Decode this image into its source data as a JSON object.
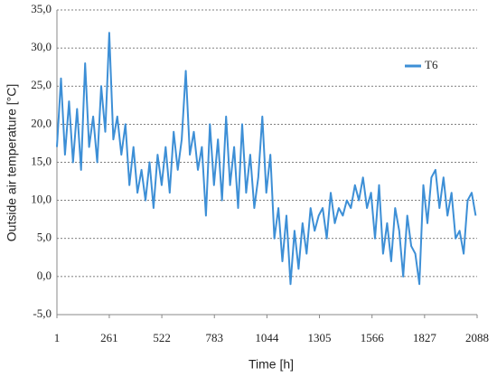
{
  "chart_data": {
    "type": "line",
    "x_label": "Time [h]",
    "y_label": "Outside air temperature [°C]",
    "x": [
      1,
      21,
      41,
      61,
      81,
      101,
      121,
      141,
      161,
      181,
      201,
      221,
      241,
      261,
      281,
      301,
      321,
      341,
      361,
      381,
      401,
      421,
      441,
      461,
      481,
      501,
      521,
      541,
      561,
      581,
      601,
      621,
      641,
      661,
      681,
      701,
      721,
      741,
      761,
      781,
      801,
      821,
      841,
      861,
      881,
      901,
      921,
      941,
      961,
      981,
      1001,
      1021,
      1041,
      1061,
      1081,
      1101,
      1121,
      1141,
      1161,
      1181,
      1201,
      1221,
      1241,
      1261,
      1281,
      1301,
      1321,
      1341,
      1361,
      1381,
      1401,
      1421,
      1441,
      1461,
      1481,
      1501,
      1521,
      1541,
      1561,
      1581,
      1601,
      1621,
      1641,
      1661,
      1681,
      1701,
      1721,
      1741,
      1761,
      1781,
      1801,
      1821,
      1841,
      1861,
      1881,
      1901,
      1921,
      1941,
      1961,
      1981,
      2001,
      2021,
      2041,
      2061,
      2081
    ],
    "series": [
      {
        "name": "T6",
        "color": "#3d8fd6",
        "values": [
          17,
          26,
          16,
          23,
          15,
          22,
          14,
          28,
          17,
          21,
          15,
          25,
          19,
          32,
          18,
          21,
          16,
          20,
          12,
          17,
          11,
          14,
          10,
          15,
          9,
          16,
          12,
          17,
          11,
          19,
          14,
          18,
          27,
          16,
          19,
          14,
          17,
          8,
          20,
          12,
          18,
          10,
          21,
          12,
          17,
          9,
          20,
          11,
          16,
          9,
          13,
          21,
          11,
          16,
          5,
          9,
          2,
          8,
          -1,
          6,
          1,
          7,
          3,
          9,
          6,
          8,
          9,
          5,
          11,
          7,
          9,
          8,
          10,
          9,
          12,
          10,
          13,
          9,
          11,
          5,
          12,
          3,
          7,
          2,
          9,
          6,
          0,
          8,
          4,
          3,
          -1,
          12,
          7,
          13,
          14,
          9,
          13,
          8,
          11,
          5,
          6,
          3,
          10,
          11,
          8
        ]
      }
    ],
    "xlim": [
      1,
      2088
    ],
    "xticks": [
      1,
      261,
      522,
      783,
      1044,
      1305,
      1566,
      1827,
      2088
    ],
    "ylim": [
      -5,
      35
    ],
    "yticks": [
      {
        "value": -5,
        "label": "-5,0"
      },
      {
        "value": 0,
        "label": "0,0"
      },
      {
        "value": 5,
        "label": "5,0"
      },
      {
        "value": 10,
        "label": "10,0"
      },
      {
        "value": 15,
        "label": "15,0"
      },
      {
        "value": 20,
        "label": "20,0"
      },
      {
        "value": 25,
        "label": "25,0"
      },
      {
        "value": 30,
        "label": "30,0"
      },
      {
        "value": 35,
        "label": "35,0"
      }
    ],
    "grid": true,
    "legend": "upper right"
  }
}
